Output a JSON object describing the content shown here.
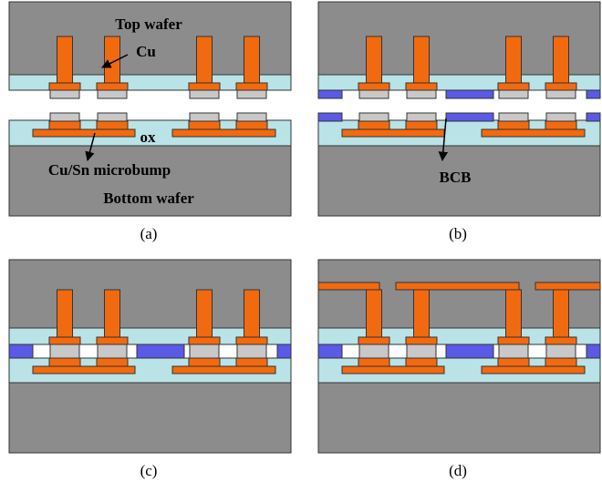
{
  "labels": {
    "top_wafer": "Top wafer",
    "cu": "Cu",
    "ox": "ox",
    "microbump": "Cu/Sn microbump",
    "bottom_wafer": "Bottom wafer",
    "bcb": "BCB"
  },
  "captions": [
    "(a)",
    "(b)",
    "(c)",
    "(d)"
  ]
}
